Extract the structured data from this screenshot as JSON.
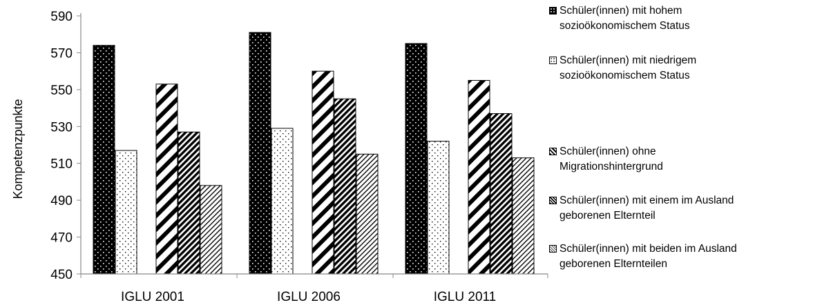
{
  "chart_data": {
    "type": "bar",
    "categories": [
      "IGLU 2001",
      "IGLU 2006",
      "IGLU 2011"
    ],
    "ylabel": "Kompetenzpunkte",
    "ylim": [
      450,
      590
    ],
    "yticks": [
      450,
      470,
      490,
      510,
      530,
      550,
      570,
      590
    ],
    "grid": false,
    "legend_position": "right",
    "series": [
      {
        "name": "Schüler(innen) mit hohem sozioökonomischem Status",
        "values": [
          574,
          581,
          575
        ],
        "pattern": "dots-dark"
      },
      {
        "name": "Schüler(innen) mit niedrigem sozioökonomischem Status",
        "values": [
          517,
          529,
          522
        ],
        "pattern": "dots-light"
      },
      {
        "name": "Schüler(innen) ohne Migrationshintergrund",
        "values": [
          553,
          560,
          555
        ],
        "pattern": "wide-diagonal"
      },
      {
        "name": "Schüler(innen) mit einem im Ausland geborenen Elternteil",
        "values": [
          527,
          545,
          537
        ],
        "pattern": "dense-diagonal"
      },
      {
        "name": "Schüler(innen) mit beiden im Ausland geborenen Elternteilen",
        "values": [
          498,
          515,
          513
        ],
        "pattern": "light-diagonal"
      }
    ]
  },
  "legend": {
    "items": [
      {
        "line1": "Schüler(innen) mit hohem",
        "line2": "sozioökonomischem Status"
      },
      {
        "line1": "Schüler(innen) mit niedrigem",
        "line2": "sozioökonomischem Status"
      },
      {
        "line1": "Schüler(innen) ohne",
        "line2": "Migrationshintergrund"
      },
      {
        "line1": "Schüler(innen) mit einem im Ausland",
        "line2": "geborenen Elternteil"
      },
      {
        "line1": "Schüler(innen) mit beiden im Ausland",
        "line2": "geborenen Elternteilen"
      }
    ]
  }
}
